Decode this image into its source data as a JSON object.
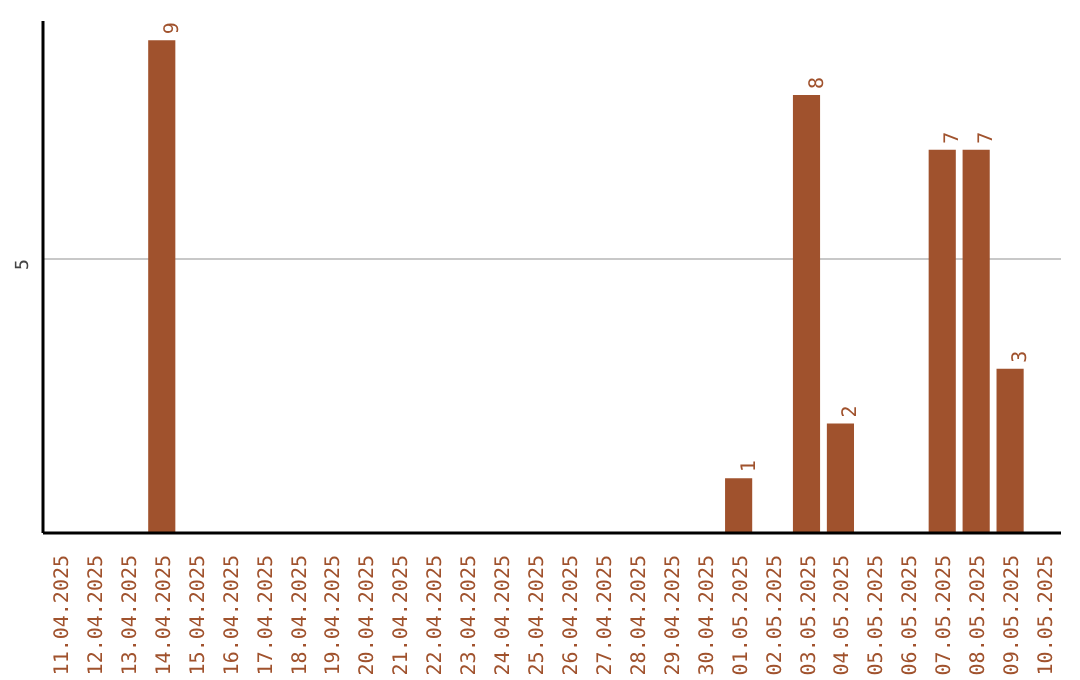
{
  "chart_data": {
    "type": "bar",
    "categories": [
      "11.04.2025",
      "12.04.2025",
      "13.04.2025",
      "14.04.2025",
      "15.04.2025",
      "16.04.2025",
      "17.04.2025",
      "18.04.2025",
      "19.04.2025",
      "20.04.2025",
      "21.04.2025",
      "22.04.2025",
      "23.04.2025",
      "24.04.2025",
      "25.04.2025",
      "26.04.2025",
      "27.04.2025",
      "28.04.2025",
      "29.04.2025",
      "30.04.2025",
      "01.05.2025",
      "02.05.2025",
      "03.05.2025",
      "04.05.2025",
      "05.05.2025",
      "06.05.2025",
      "07.05.2025",
      "08.05.2025",
      "09.05.2025",
      "10.05.2025"
    ],
    "values": [
      0,
      0,
      0,
      9,
      0,
      0,
      0,
      0,
      0,
      0,
      0,
      0,
      0,
      0,
      0,
      0,
      0,
      0,
      0,
      0,
      1,
      0,
      8,
      2,
      0,
      0,
      7,
      7,
      3,
      0
    ],
    "value_labels": [
      null,
      null,
      null,
      "9",
      null,
      null,
      null,
      null,
      null,
      null,
      null,
      null,
      null,
      null,
      null,
      null,
      null,
      null,
      null,
      null,
      "1",
      null,
      "8",
      "2",
      null,
      null,
      "7",
      "7",
      "3",
      null
    ],
    "color": "#a0522d",
    "ylim": [
      0,
      9.35
    ],
    "yticks": [
      5
    ],
    "grid": "y"
  }
}
